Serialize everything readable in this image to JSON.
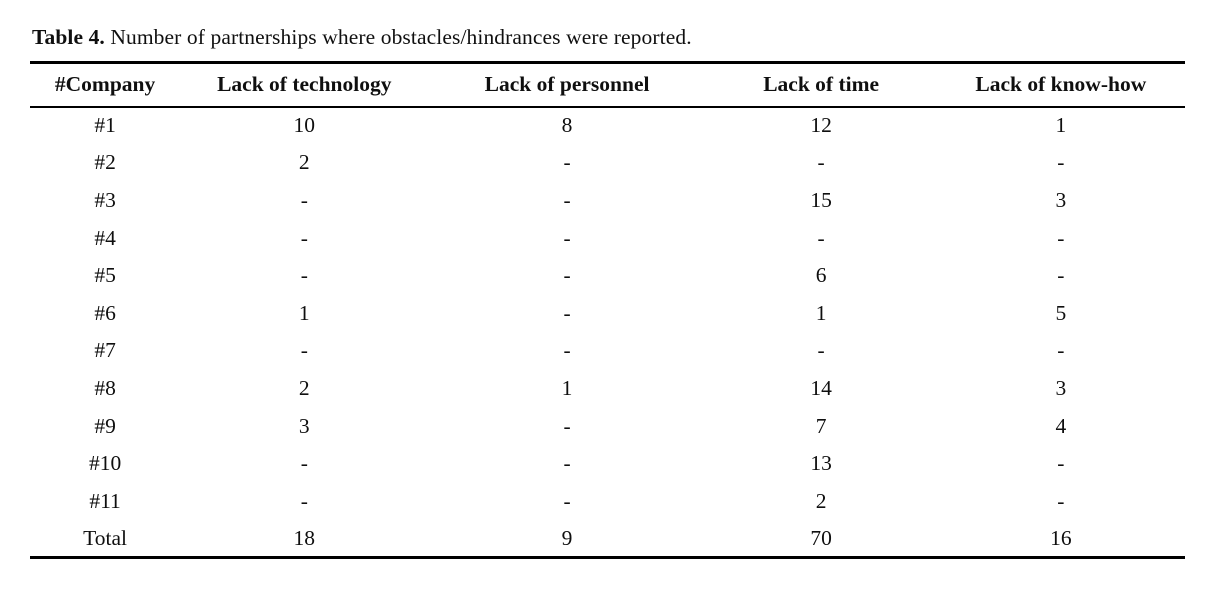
{
  "page": {
    "background_color": "#ffffff",
    "text_color": "#0f0f0f"
  },
  "caption": {
    "label": "Table 4.",
    "text": " Number of partnerships where obstacles/hindrances were reported."
  },
  "table": {
    "columns": [
      "#Company",
      "Lack of technology",
      "Lack of personnel",
      "Lack of time",
      "Lack of know-how"
    ],
    "rows": [
      [
        "#1",
        "10",
        "8",
        "12",
        "1"
      ],
      [
        "#2",
        "2",
        "-",
        "-",
        "-"
      ],
      [
        "#3",
        "-",
        "-",
        "15",
        "3"
      ],
      [
        "#4",
        "-",
        "-",
        "-",
        "-"
      ],
      [
        "#5",
        "-",
        "-",
        "6",
        "-"
      ],
      [
        "#6",
        "1",
        "-",
        "1",
        "5"
      ],
      [
        "#7",
        "-",
        "-",
        "-",
        "-"
      ],
      [
        "#8",
        "2",
        "1",
        "14",
        "3"
      ],
      [
        "#9",
        "3",
        "-",
        "7",
        "4"
      ],
      [
        "#10",
        "-",
        "-",
        "13",
        "-"
      ],
      [
        "#11",
        "-",
        "-",
        "2",
        "-"
      ],
      [
        "Total",
        "18",
        "9",
        "70",
        "16"
      ]
    ]
  }
}
